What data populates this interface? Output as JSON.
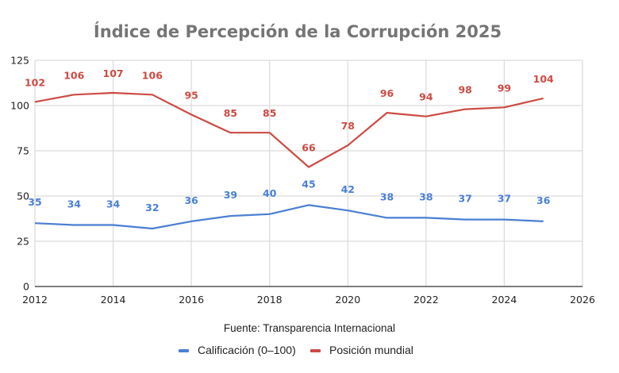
{
  "chart_data": {
    "type": "line",
    "title": "Índice de Percepción de la Corrupción 2025",
    "source_note": "Fuente: Transparencia Internacional",
    "xlabel": "",
    "ylabel": "",
    "xlim": [
      2012,
      2026
    ],
    "ylim": [
      0,
      125
    ],
    "x_ticks": [
      "2012",
      "2014",
      "2016",
      "2018",
      "2020",
      "2022",
      "2024",
      "2026"
    ],
    "y_ticks": [
      "0",
      "25",
      "50",
      "75",
      "100",
      "125"
    ],
    "grid": true,
    "legend_position": "bottom",
    "x": [
      2012,
      2013,
      2014,
      2015,
      2016,
      2017,
      2018,
      2019,
      2020,
      2021,
      2022,
      2023,
      2024,
      2025
    ],
    "series": [
      {
        "name": "Calificación (0–100)",
        "color": "#4a7fd4",
        "values": [
          35,
          34,
          34,
          32,
          36,
          39,
          40,
          45,
          42,
          38,
          38,
          37,
          37,
          36
        ]
      },
      {
        "name": "Posición mundial",
        "color": "#cc4b43",
        "values": [
          102,
          106,
          107,
          106,
          95,
          85,
          85,
          66,
          78,
          96,
          94,
          98,
          99,
          104
        ]
      }
    ]
  }
}
